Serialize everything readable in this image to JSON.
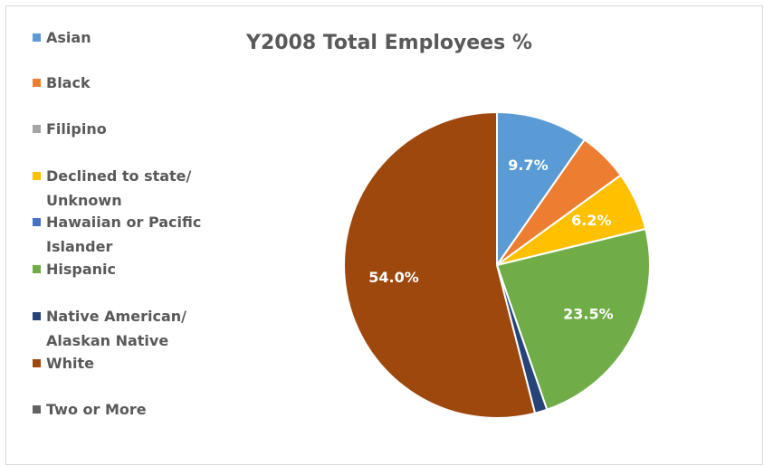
{
  "chart_data": {
    "type": "pie",
    "title": "Y2008 Total Employees %",
    "categories": [
      "Asian",
      "Black",
      "Filipino",
      "Declined to state/ Unknown",
      "Hawaiian or Pacific Islander",
      "Hispanic",
      "Native American/ Alaskan Native",
      "White",
      "Two or More"
    ],
    "values": [
      9.7,
      5.3,
      0,
      6.2,
      0,
      23.5,
      1.3,
      54.0,
      0
    ],
    "value_labels": [
      "9.7%",
      null,
      null,
      "6.2%",
      null,
      "23.5%",
      null,
      "54.0%",
      null
    ],
    "colors": [
      "#5b9bd5",
      "#ed7d31",
      "#a5a5a5",
      "#ffc000",
      "#4472c4",
      "#70ad47",
      "#264478",
      "#9e480e",
      "#636363"
    ],
    "legend": "left"
  }
}
